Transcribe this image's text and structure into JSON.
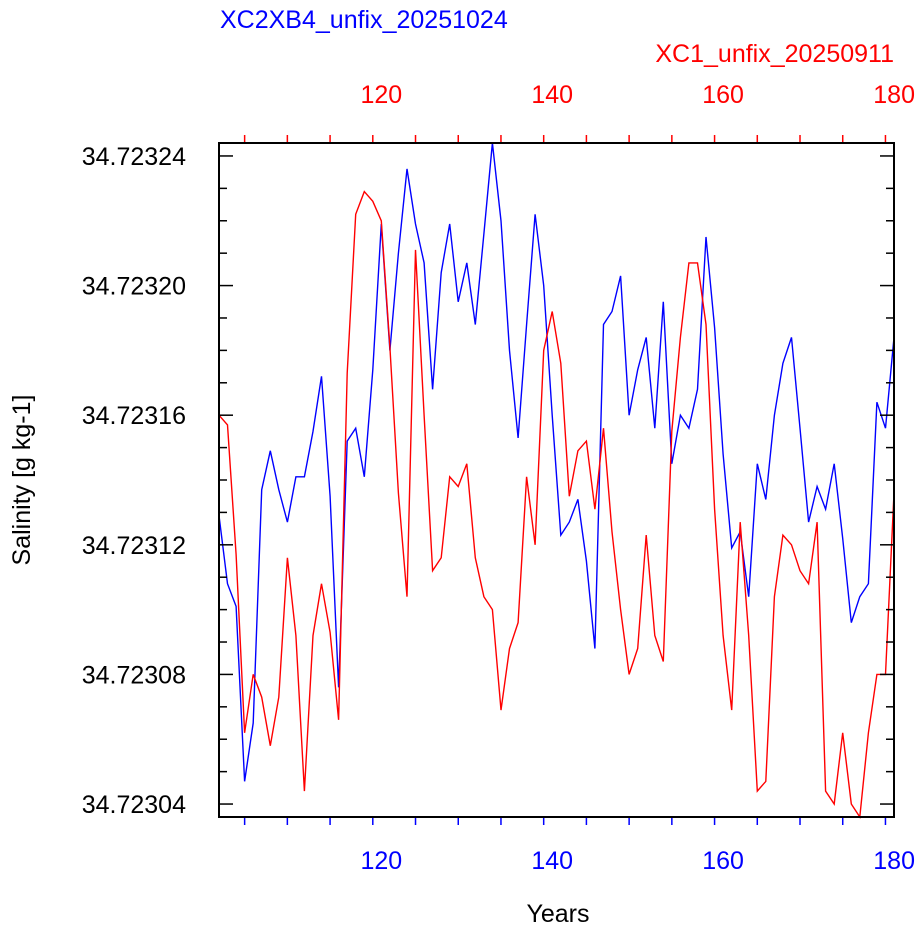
{
  "chart_data": {
    "type": "line",
    "title_top_left": "XC2XB4_unfix_20251024",
    "title_top_right": "XC1_unfix_20250911",
    "xlabel": "Years",
    "ylabel": "Salinity [g kg-1]",
    "xlim": [
      101,
      180
    ],
    "ylim": [
      34.723036,
      34.723244
    ],
    "yticks": [
      "34.72304",
      "34.72308",
      "34.72312",
      "34.72316",
      "34.72320",
      "34.72324"
    ],
    "ytick_values": [
      34.72304,
      34.72308,
      34.72312,
      34.72316,
      34.7232,
      34.72324
    ],
    "xticks_bottom": [
      "120",
      "140",
      "160",
      "180"
    ],
    "xticks_top": [
      "120",
      "140",
      "160",
      "180"
    ],
    "xtick_values": [
      120,
      140,
      160,
      180
    ],
    "grid": false,
    "series": [
      {
        "name": "XC2XB4_unfix_20251024",
        "color": "#0000ff",
        "axis": "bottom",
        "x": [
          101,
          102,
          103,
          104,
          105,
          106,
          107,
          108,
          109,
          110,
          111,
          112,
          113,
          114,
          115,
          116,
          117,
          118,
          119,
          120,
          121,
          122,
          123,
          124,
          125,
          126,
          127,
          128,
          129,
          130,
          131,
          132,
          133,
          134,
          135,
          136,
          137,
          138,
          139,
          140,
          141,
          142,
          143,
          144,
          145,
          146,
          147,
          148,
          149,
          150,
          151,
          152,
          153,
          154,
          155,
          156,
          157,
          158,
          159,
          160,
          161,
          162,
          163,
          164,
          165,
          166,
          167,
          168,
          169,
          170,
          171,
          172,
          173,
          174,
          175,
          176,
          177,
          178,
          179,
          180
        ],
        "values": [
          34.723129,
          34.723108,
          34.723101,
          34.723047,
          34.723065,
          34.723137,
          34.723149,
          34.723137,
          34.723127,
          34.723141,
          34.723141,
          34.723155,
          34.723172,
          34.723135,
          34.723076,
          34.723152,
          34.723156,
          34.723141,
          34.723174,
          34.723219,
          34.72318,
          34.72321,
          34.723236,
          34.723219,
          34.723207,
          34.723168,
          34.723204,
          34.723219,
          34.723195,
          34.723207,
          34.723188,
          34.723216,
          34.723244,
          34.72322,
          34.72318,
          34.723153,
          34.723188,
          34.723222,
          34.7232,
          34.72316,
          34.723123,
          34.723127,
          34.723134,
          34.723115,
          34.723088,
          34.723188,
          34.723192,
          34.723203,
          34.72316,
          34.723174,
          34.723184,
          34.723156,
          34.723195,
          34.723145,
          34.72316,
          34.723156,
          34.723168,
          34.723215,
          34.723187,
          34.723148,
          34.723119,
          34.723124,
          34.723104,
          34.723145,
          34.723134,
          34.72316,
          34.723176,
          34.723184,
          34.723156,
          34.723127,
          34.723138,
          34.723131,
          34.723145,
          34.723122,
          34.723096,
          34.723104,
          34.723108,
          34.723164,
          34.723156,
          34.723184
        ]
      },
      {
        "name": "XC1_unfix_20250911",
        "color": "#ff0000",
        "axis": "top",
        "x": [
          101,
          102,
          103,
          104,
          105,
          106,
          107,
          108,
          109,
          110,
          111,
          112,
          113,
          114,
          115,
          116,
          117,
          118,
          119,
          120,
          121,
          122,
          123,
          124,
          125,
          126,
          127,
          128,
          129,
          130,
          131,
          132,
          133,
          134,
          135,
          136,
          137,
          138,
          139,
          140,
          141,
          142,
          143,
          144,
          145,
          146,
          147,
          148,
          149,
          150,
          151,
          152,
          153,
          154,
          155,
          156,
          157,
          158,
          159,
          160,
          161,
          162,
          163,
          164,
          165,
          166,
          167,
          168,
          169,
          170,
          171,
          172,
          173,
          174,
          175,
          176,
          177,
          178,
          179,
          180
        ],
        "values": [
          34.72316,
          34.723157,
          34.723117,
          34.723062,
          34.72308,
          34.723073,
          34.723058,
          34.723073,
          34.723116,
          34.723092,
          34.723044,
          34.723092,
          34.723108,
          34.723093,
          34.723066,
          34.723173,
          34.723222,
          34.723229,
          34.723226,
          34.72322,
          34.723181,
          34.723136,
          34.723104,
          34.723211,
          34.72316,
          34.723112,
          34.723116,
          34.723141,
          34.723138,
          34.723145,
          34.723116,
          34.723104,
          34.7231,
          34.723069,
          34.723088,
          34.723096,
          34.723141,
          34.72312,
          34.72318,
          34.723192,
          34.723176,
          34.723135,
          34.723149,
          34.723152,
          34.723131,
          34.723156,
          34.723124,
          34.7231,
          34.72308,
          34.723088,
          34.723123,
          34.723092,
          34.723084,
          34.723155,
          34.723184,
          34.723207,
          34.723207,
          34.723188,
          34.723131,
          34.723092,
          34.723069,
          34.723127,
          34.723092,
          34.723044,
          34.723047,
          34.723104,
          34.723123,
          34.72312,
          34.723112,
          34.723108,
          34.723127,
          34.723044,
          34.72304,
          34.723062,
          34.72304,
          34.723036,
          34.723062,
          34.72308,
          34.72308,
          34.723136
        ]
      }
    ]
  }
}
